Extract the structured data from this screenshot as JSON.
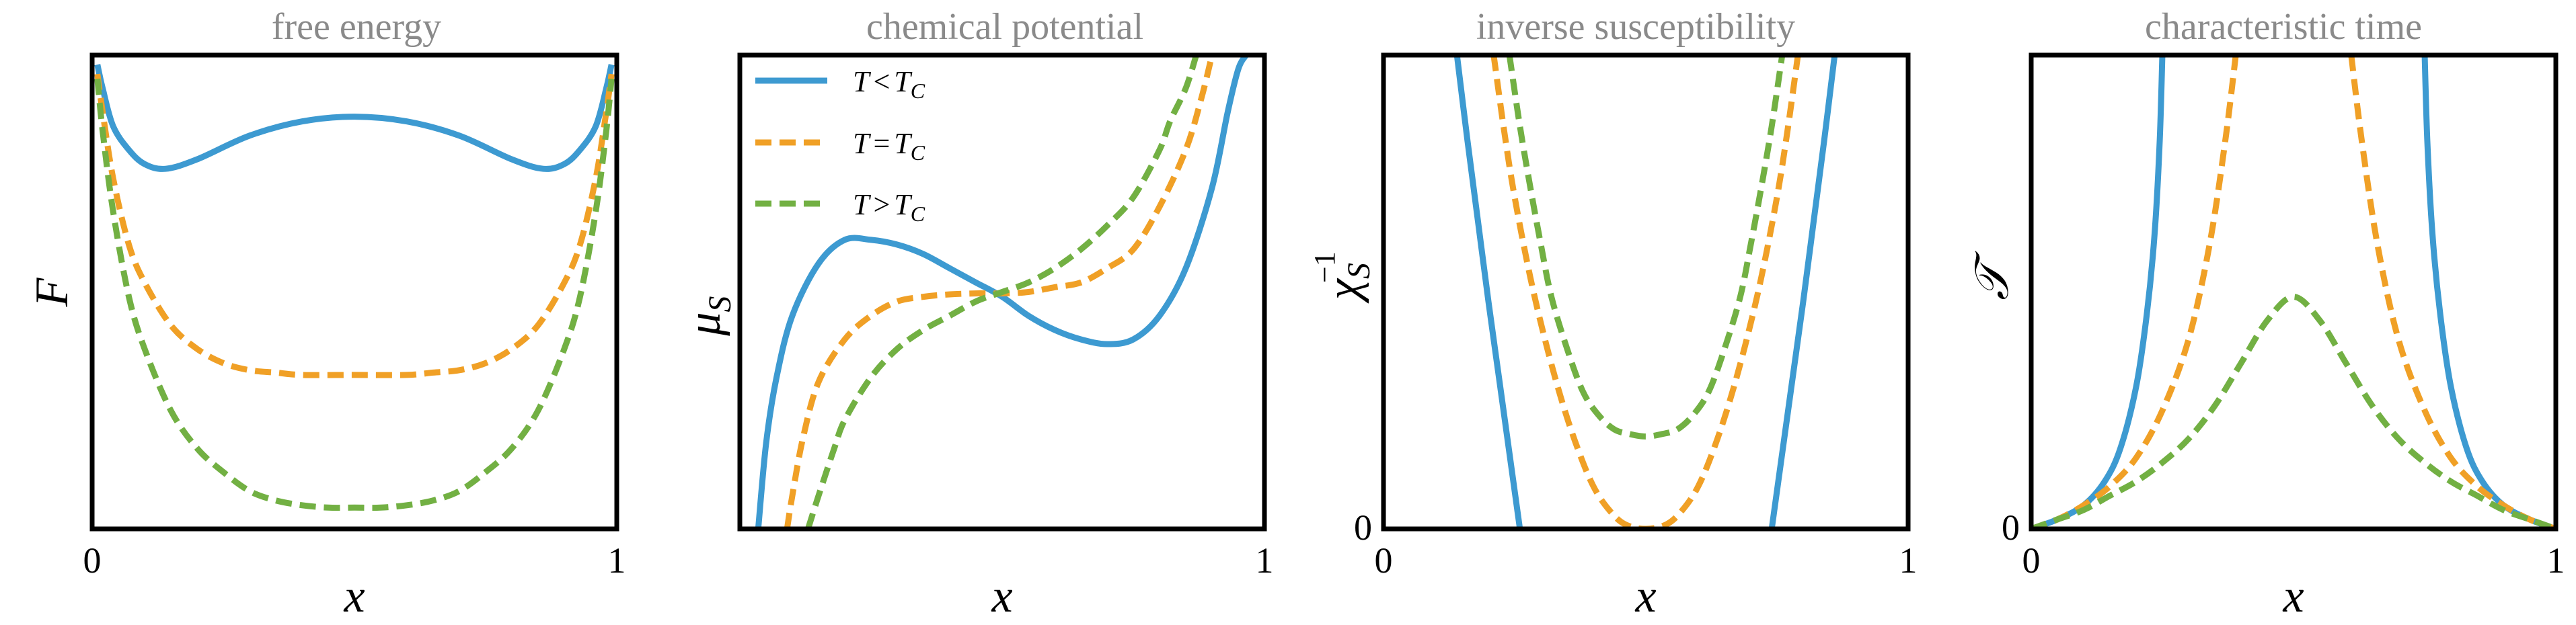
{
  "colors": {
    "below": "#3d9ad1",
    "critical": "#f0a026",
    "above": "#72b043"
  },
  "chart_data": [
    {
      "type": "line",
      "title": "free energy",
      "ylabel": "F",
      "xlabel": "x",
      "xlim": [
        0,
        1
      ],
      "ylim": [
        0,
        1
      ],
      "xticks": [
        "0",
        "1"
      ],
      "yticks": [],
      "series": [
        {
          "key": "below",
          "style": "solid",
          "x": [
            0.01,
            0.02,
            0.04,
            0.07,
            0.1,
            0.14,
            0.2,
            0.3,
            0.4,
            0.5,
            0.6,
            0.7,
            0.8,
            0.86,
            0.9,
            0.93,
            0.96,
            0.98,
            0.99
          ],
          "y": [
            0.98,
            0.93,
            0.85,
            0.8,
            0.77,
            0.76,
            0.78,
            0.83,
            0.86,
            0.87,
            0.86,
            0.83,
            0.78,
            0.76,
            0.77,
            0.8,
            0.85,
            0.93,
            0.98
          ]
        },
        {
          "key": "critical",
          "style": "dashed",
          "x": [
            0.01,
            0.02,
            0.04,
            0.07,
            0.1,
            0.15,
            0.2,
            0.25,
            0.3,
            0.35,
            0.4,
            0.5,
            0.6,
            0.65,
            0.7,
            0.75,
            0.8,
            0.85,
            0.9,
            0.93,
            0.96,
            0.98,
            0.99
          ],
          "y": [
            0.96,
            0.88,
            0.74,
            0.6,
            0.52,
            0.43,
            0.38,
            0.35,
            0.335,
            0.33,
            0.325,
            0.325,
            0.325,
            0.33,
            0.335,
            0.35,
            0.38,
            0.43,
            0.52,
            0.6,
            0.74,
            0.88,
            0.96
          ]
        },
        {
          "key": "above",
          "style": "dashed",
          "x": [
            0.01,
            0.02,
            0.04,
            0.07,
            0.1,
            0.15,
            0.2,
            0.25,
            0.3,
            0.35,
            0.4,
            0.45,
            0.5,
            0.55,
            0.6,
            0.65,
            0.7,
            0.75,
            0.8,
            0.85,
            0.9,
            0.93,
            0.96,
            0.98,
            0.99
          ],
          "y": [
            0.95,
            0.84,
            0.67,
            0.49,
            0.38,
            0.25,
            0.17,
            0.12,
            0.08,
            0.06,
            0.05,
            0.045,
            0.045,
            0.045,
            0.05,
            0.06,
            0.08,
            0.12,
            0.17,
            0.25,
            0.38,
            0.49,
            0.67,
            0.84,
            0.95
          ]
        }
      ]
    },
    {
      "type": "line",
      "title": "chemical potential",
      "ylabel": "μ",
      "ylabel_sub": "S",
      "xlabel": "x",
      "xlim": [
        0,
        1
      ],
      "ylim": [
        0,
        1
      ],
      "xticks": [
        "",
        "1"
      ],
      "yticks": [],
      "legend": {
        "position": "top-left",
        "entries": [
          {
            "key": "below",
            "style": "solid",
            "var": "T",
            "rel": "<",
            "rhs": "T",
            "sub": "C"
          },
          {
            "key": "critical",
            "style": "dashed",
            "var": "T",
            "rel": "=",
            "rhs": "T",
            "sub": "C"
          },
          {
            "key": "above",
            "style": "dashed",
            "var": "T",
            "rel": ">",
            "rhs": "T",
            "sub": "C"
          }
        ]
      },
      "series": [
        {
          "key": "below",
          "style": "solid",
          "x": [
            0.035,
            0.05,
            0.07,
            0.1,
            0.15,
            0.2,
            0.25,
            0.3,
            0.35,
            0.4,
            0.45,
            0.5,
            0.55,
            0.6,
            0.65,
            0.7,
            0.75,
            0.8,
            0.85,
            0.9,
            0.93,
            0.95,
            0.965
          ],
          "y": [
            0.0,
            0.18,
            0.32,
            0.45,
            0.56,
            0.61,
            0.61,
            0.6,
            0.58,
            0.55,
            0.52,
            0.49,
            0.45,
            0.42,
            0.4,
            0.39,
            0.4,
            0.45,
            0.55,
            0.72,
            0.88,
            0.97,
            1.0
          ]
        },
        {
          "key": "critical",
          "style": "dashed",
          "x": [
            0.09,
            0.1,
            0.12,
            0.15,
            0.2,
            0.25,
            0.3,
            0.35,
            0.4,
            0.45,
            0.5,
            0.55,
            0.6,
            0.65,
            0.7,
            0.75,
            0.8,
            0.85,
            0.88,
            0.9
          ],
          "y": [
            0.0,
            0.07,
            0.19,
            0.31,
            0.4,
            0.45,
            0.48,
            0.49,
            0.495,
            0.497,
            0.497,
            0.5,
            0.51,
            0.52,
            0.55,
            0.59,
            0.68,
            0.8,
            0.91,
            1.0
          ]
        },
        {
          "key": "above",
          "style": "dashed",
          "x": [
            0.13,
            0.15,
            0.18,
            0.2,
            0.25,
            0.3,
            0.35,
            0.4,
            0.45,
            0.5,
            0.55,
            0.6,
            0.65,
            0.7,
            0.75,
            0.8,
            0.82,
            0.85,
            0.87
          ],
          "y": [
            0.0,
            0.07,
            0.17,
            0.23,
            0.32,
            0.38,
            0.42,
            0.45,
            0.48,
            0.5,
            0.52,
            0.55,
            0.59,
            0.64,
            0.7,
            0.8,
            0.86,
            0.93,
            1.0
          ]
        }
      ]
    },
    {
      "type": "line",
      "title": "inverse susceptibility",
      "ylabel": "χ",
      "ylabel_sub": "S",
      "ylabel_sup": "−1",
      "xlabel": "x",
      "xlim": [
        0,
        1
      ],
      "ylim": [
        0,
        1
      ],
      "xticks": [
        "0",
        "1"
      ],
      "yticks": [
        "0"
      ],
      "series": [
        {
          "key": "below",
          "style": "solid",
          "x": [
            0.14,
            0.16,
            0.18,
            0.2,
            0.22,
            0.24,
            0.26
          ],
          "y": [
            1.0,
            0.82,
            0.65,
            0.48,
            0.32,
            0.16,
            0.0
          ]
        },
        {
          "key": "below",
          "style": "solid",
          "x": [
            0.74,
            0.76,
            0.78,
            0.8,
            0.82,
            0.84,
            0.86
          ],
          "y": [
            0.0,
            0.16,
            0.32,
            0.48,
            0.65,
            0.82,
            1.0
          ]
        },
        {
          "key": "critical",
          "style": "dashed",
          "x": [
            0.21,
            0.23,
            0.25,
            0.28,
            0.31,
            0.34,
            0.37,
            0.4,
            0.43,
            0.46,
            0.5,
            0.54,
            0.57,
            0.6,
            0.63,
            0.66,
            0.69,
            0.72,
            0.75,
            0.77,
            0.79
          ],
          "y": [
            1.0,
            0.84,
            0.7,
            0.53,
            0.39,
            0.27,
            0.17,
            0.09,
            0.04,
            0.01,
            0.0,
            0.01,
            0.04,
            0.09,
            0.17,
            0.27,
            0.39,
            0.53,
            0.7,
            0.84,
            1.0
          ]
        },
        {
          "key": "above",
          "style": "dashed",
          "x": [
            0.24,
            0.26,
            0.28,
            0.3,
            0.32,
            0.35,
            0.38,
            0.41,
            0.44,
            0.47,
            0.5,
            0.53,
            0.56,
            0.59,
            0.62,
            0.65,
            0.68,
            0.7,
            0.72,
            0.74,
            0.76
          ],
          "y": [
            1.0,
            0.85,
            0.72,
            0.6,
            0.49,
            0.38,
            0.29,
            0.24,
            0.21,
            0.2,
            0.195,
            0.2,
            0.21,
            0.24,
            0.29,
            0.38,
            0.49,
            0.6,
            0.72,
            0.85,
            1.0
          ]
        }
      ]
    },
    {
      "type": "line",
      "title": "characteristic time",
      "ylabel": "𝒯",
      "xlabel": "x",
      "xlim": [
        0,
        1
      ],
      "ylim": [
        0,
        1
      ],
      "xticks": [
        "0",
        "1"
      ],
      "yticks": [
        "0"
      ],
      "series": [
        {
          "key": "below",
          "style": "solid",
          "x": [
            0.0,
            0.05,
            0.1,
            0.14,
            0.17,
            0.2,
            0.22,
            0.235,
            0.245,
            0.25
          ],
          "y": [
            0.0,
            0.02,
            0.05,
            0.1,
            0.17,
            0.3,
            0.45,
            0.62,
            0.82,
            1.0
          ]
        },
        {
          "key": "below",
          "style": "solid",
          "x": [
            0.75,
            0.755,
            0.765,
            0.78,
            0.8,
            0.83,
            0.86,
            0.9,
            0.95,
            1.0
          ],
          "y": [
            1.0,
            0.82,
            0.62,
            0.45,
            0.3,
            0.17,
            0.1,
            0.05,
            0.02,
            0.0
          ]
        },
        {
          "key": "critical",
          "style": "dashed",
          "x": [
            0.0,
            0.05,
            0.1,
            0.15,
            0.2,
            0.25,
            0.3,
            0.34,
            0.37,
            0.39
          ],
          "y": [
            0.0,
            0.02,
            0.05,
            0.09,
            0.15,
            0.25,
            0.4,
            0.6,
            0.82,
            1.0
          ]
        },
        {
          "key": "critical",
          "style": "dashed",
          "x": [
            0.61,
            0.63,
            0.66,
            0.7,
            0.75,
            0.8,
            0.85,
            0.9,
            0.95,
            1.0
          ],
          "y": [
            1.0,
            0.82,
            0.6,
            0.4,
            0.25,
            0.15,
            0.09,
            0.05,
            0.02,
            0.0
          ]
        },
        {
          "key": "above",
          "style": "dashed",
          "x": [
            0.0,
            0.05,
            0.1,
            0.15,
            0.2,
            0.25,
            0.3,
            0.35,
            0.4,
            0.45,
            0.5,
            0.55,
            0.6,
            0.65,
            0.7,
            0.75,
            0.8,
            0.85,
            0.9,
            0.95,
            1.0
          ],
          "y": [
            0.0,
            0.02,
            0.04,
            0.07,
            0.1,
            0.14,
            0.19,
            0.26,
            0.35,
            0.44,
            0.49,
            0.44,
            0.35,
            0.26,
            0.19,
            0.14,
            0.1,
            0.07,
            0.04,
            0.02,
            0.0
          ]
        }
      ]
    }
  ]
}
